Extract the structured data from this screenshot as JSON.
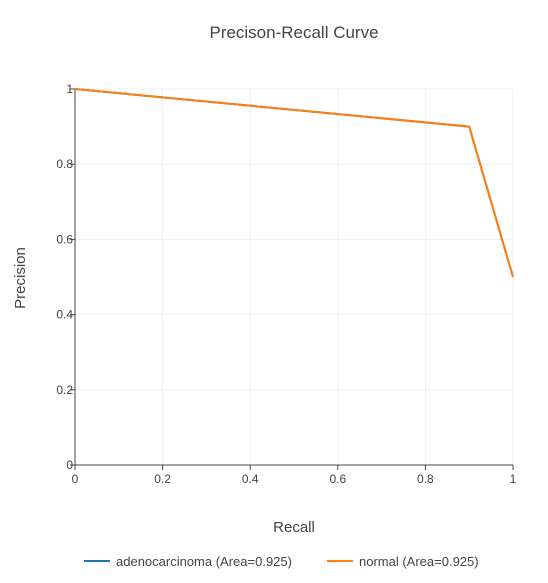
{
  "chart_data": {
    "type": "line",
    "title": "Precison-Recall Curve",
    "xlabel": "Recall",
    "ylabel": "Precision",
    "xlim": [
      0,
      1
    ],
    "ylim": [
      0,
      1
    ],
    "grid": true,
    "legend_position": "bottom",
    "x_ticks": [
      {
        "value": 0,
        "label": "0"
      },
      {
        "value": 0.2,
        "label": "0.2"
      },
      {
        "value": 0.4,
        "label": "0.4"
      },
      {
        "value": 0.6,
        "label": "0.6"
      },
      {
        "value": 0.8,
        "label": "0.8"
      },
      {
        "value": 1,
        "label": "1"
      }
    ],
    "y_ticks": [
      {
        "value": 0,
        "label": "0"
      },
      {
        "value": 0.2,
        "label": "0.2"
      },
      {
        "value": 0.4,
        "label": "0.4"
      },
      {
        "value": 0.6,
        "label": "0.6"
      },
      {
        "value": 0.8,
        "label": "0.8"
      },
      {
        "value": 1,
        "label": "1"
      }
    ],
    "series": [
      {
        "name": "adenocarcinoma (Area=0.925)",
        "color": "#1f77b4",
        "x": [
          0,
          0.9,
          1
        ],
        "y": [
          1,
          0.9,
          0.5
        ]
      },
      {
        "name": "normal (Area=0.925)",
        "color": "#ff7f0e",
        "x": [
          0,
          0.9,
          1
        ],
        "y": [
          1,
          0.9,
          0.5
        ]
      }
    ]
  }
}
